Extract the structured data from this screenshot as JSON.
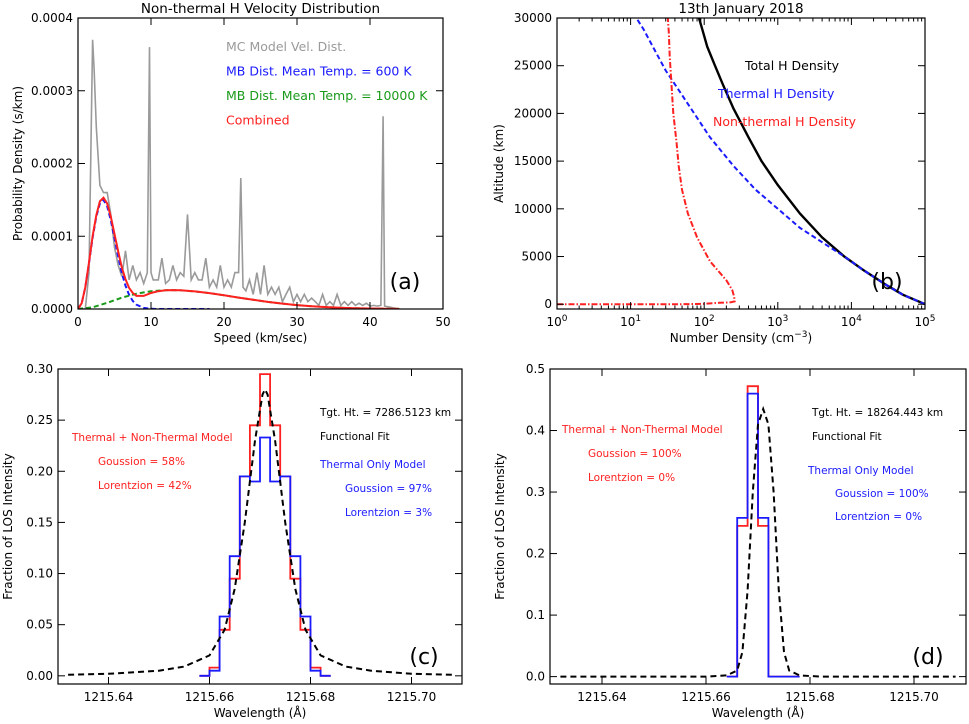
{
  "chart_data": [
    {
      "id": "a",
      "type": "line",
      "title": "Non-thermal H Velocity Distribution",
      "xlabel": "Speed (km/sec)",
      "ylabel": "Probability Density (s/km)",
      "xlim": [
        0,
        50
      ],
      "ylim": [
        0,
        0.0004
      ],
      "xticks": [
        0,
        10,
        20,
        30,
        40,
        50
      ],
      "xtick_labels": [
        "0",
        "10",
        "20",
        "30",
        "40",
        "50"
      ],
      "yticks": [
        0,
        0.0001,
        0.0002,
        0.0003,
        0.0004
      ],
      "ytick_labels": [
        "0.0000",
        "0.0001",
        "0.0002",
        "0.0003",
        "0.0004"
      ],
      "panel_label": "(a)",
      "legend": [
        {
          "text": "MC Model Vel. Dist.",
          "color": "#9a9a9a"
        },
        {
          "text": "MB Dist. Mean Temp. = 600 K",
          "color": "#1a1aff"
        },
        {
          "text": "MB Dist. Mean Temp. = 10000 K",
          "color": "#1a9a1a"
        },
        {
          "text": "Combined",
          "color": "#ff2020"
        }
      ],
      "series": [
        {
          "name": "MC Model Vel. Dist.",
          "color": "#9a9a9a",
          "x": [
            0,
            1,
            1.5,
            2,
            2.2,
            2.5,
            3,
            3.5,
            4,
            4.5,
            5,
            5.5,
            6,
            6.5,
            7,
            7.5,
            8,
            8.5,
            9,
            9.5,
            9.8,
            10,
            10.3,
            11,
            11.5,
            12,
            12.5,
            13,
            13.5,
            14,
            14.5,
            15,
            15.5,
            16,
            16.5,
            17,
            17.5,
            18,
            18.5,
            19,
            19.5,
            20,
            20.5,
            21,
            21.5,
            22,
            22.3,
            22.6,
            23,
            23.5,
            24,
            24.5,
            25,
            25.5,
            26,
            26.5,
            27,
            27.5,
            28,
            28.5,
            29,
            29.5,
            30,
            30.5,
            31,
            31.5,
            32,
            32.5,
            33,
            33.5,
            34,
            34.5,
            35,
            35.5,
            36,
            36.5,
            37,
            37.5,
            38,
            38.5,
            39,
            39.5,
            40,
            40.5,
            41,
            41.5,
            41.8,
            42,
            42.5,
            43,
            44
          ],
          "y": [
            0,
            0,
            5e-05,
            0.00037,
            0.00033,
            0.00025,
            0.00017,
            0.00016,
            0.00016,
            0.00013,
            8.5e-05,
            6e-05,
            4.5e-05,
            8e-05,
            4e-05,
            6e-05,
            4e-05,
            5e-05,
            3.5e-05,
            5e-05,
            0.00036,
            5e-05,
            4e-05,
            4e-05,
            7e-05,
            3.5e-05,
            4e-05,
            6e-05,
            4e-05,
            5e-05,
            4.5e-05,
            0.00013,
            4e-05,
            5e-05,
            4e-05,
            4e-05,
            7e-05,
            3e-05,
            4e-05,
            3e-05,
            6e-05,
            3e-05,
            4e-05,
            3e-05,
            5e-05,
            5e-05,
            0.00018,
            3e-05,
            2.5e-05,
            4e-05,
            2e-05,
            5e-05,
            2e-05,
            6e-05,
            2e-05,
            3e-05,
            2e-05,
            3e-05,
            1e-05,
            2e-05,
            3e-05,
            1e-05,
            2e-05,
            1e-05,
            2e-05,
            1e-05,
            1.5e-05,
            1e-05,
            5e-06,
            2e-05,
            5e-06,
            1e-05,
            5e-06,
            2e-05,
            5e-06,
            1e-05,
            5e-06,
            1e-05,
            5e-06,
            8e-06,
            5e-06,
            8e-06,
            4e-06,
            5e-06,
            4e-06,
            5e-06,
            0.000265,
            4e-06,
            3e-06,
            2e-06,
            0
          ]
        },
        {
          "name": "MB Dist. Mean Temp. = 600 K",
          "color": "#1a1aff",
          "dash": "5,3",
          "x": [
            0,
            0.5,
            1,
            1.5,
            2,
            2.5,
            3,
            3.5,
            4,
            4.5,
            5,
            5.5,
            6,
            6.5,
            7,
            7.5,
            8,
            9,
            10,
            11,
            12,
            13,
            14,
            15,
            16,
            17,
            18
          ],
          "y": [
            0,
            8e-06,
            3e-05,
            6.3e-05,
            9.8e-05,
            0.000127,
            0.000145,
            0.00015,
            0.000141,
            0.000122,
            9.75e-05,
            7.2e-05,
            4.95e-05,
            3.2e-05,
            1.94e-05,
            1.1e-05,
            5.9e-06,
            1.5e-06,
            3e-07,
            0,
            0,
            0,
            0,
            0,
            0,
            0,
            0
          ]
        },
        {
          "name": "MB Dist. Mean Temp. = 10000 K",
          "color": "#1a9a1a",
          "dash": "5,3",
          "x": [
            0,
            2,
            4,
            6,
            8,
            10,
            12,
            13,
            14,
            16,
            18,
            20,
            22,
            24,
            26,
            28,
            30,
            32,
            34,
            36,
            38,
            40,
            42,
            44
          ],
          "y": [
            0,
            2.4e-06,
            8.5e-06,
            1.55e-05,
            2.1e-05,
            2.45e-05,
            2.58e-05,
            2.6e-05,
            2.57e-05,
            2.42e-05,
            2.18e-05,
            1.88e-05,
            1.57e-05,
            1.26e-05,
            9.8e-06,
            7.4e-06,
            5.4e-06,
            3.8e-06,
            2.6e-06,
            1.7e-06,
            1.1e-06,
            7e-07,
            4e-07,
            2e-07
          ]
        },
        {
          "name": "Combined",
          "color": "#ff2020",
          "x": [
            0,
            0.5,
            1,
            1.5,
            2,
            2.5,
            3,
            3.5,
            4,
            4.5,
            5,
            5.5,
            6,
            6.5,
            7,
            7.5,
            8,
            9,
            10,
            11,
            12,
            13,
            14,
            16,
            18,
            20,
            22,
            24,
            26,
            28,
            30,
            32,
            34,
            36,
            38,
            40,
            42,
            44
          ],
          "y": [
            0,
            8e-06,
            3e-05,
            6.4e-05,
            0.0001,
            0.000129,
            0.000148,
            0.000153,
            0.000145,
            0.000127,
            0.000103,
            7.9e-05,
            5.7e-05,
            4.1e-05,
            2.9e-05,
            2.2e-05,
            1.8e-05,
            1.8e-05,
            2.2e-05,
            2.45e-05,
            2.58e-05,
            2.6e-05,
            2.57e-05,
            2.42e-05,
            2.18e-05,
            1.88e-05,
            1.57e-05,
            1.26e-05,
            9.8e-06,
            7.4e-06,
            5.4e-06,
            3.8e-06,
            2.6e-06,
            1.7e-06,
            1.1e-06,
            7e-07,
            4e-07,
            2e-07
          ]
        }
      ]
    },
    {
      "id": "b",
      "type": "line",
      "title": "13th January 2018",
      "xlabel": "Number Density (cm",
      "xlabel_sup": "−3",
      "xlabel_end": ")",
      "ylabel": "Altitude (km)",
      "xscale": "log",
      "xlim": [
        1,
        100000
      ],
      "ylim": [
        -500,
        30000
      ],
      "xticks": [
        1,
        10,
        100,
        1000,
        10000,
        100000
      ],
      "xtick_base": "10",
      "xtick_exps": [
        "0",
        "1",
        "2",
        "3",
        "4",
        "5"
      ],
      "yticks": [
        0,
        5000,
        10000,
        15000,
        20000,
        25000,
        30000
      ],
      "ytick_labels": [
        "0",
        "5000",
        "10000",
        "15000",
        "20000",
        "25000",
        "30000"
      ],
      "panel_label": "(b)",
      "legend": [
        {
          "text": "Total H Density",
          "color": "#000000"
        },
        {
          "text": "Thermal H Density",
          "color": "#1a1aff"
        },
        {
          "text": "Non-thermal H Density",
          "color": "#ff2020"
        }
      ],
      "series": [
        {
          "name": "Total H Density",
          "color": "#000000",
          "x": [
            100000,
            50000,
            30000,
            15000,
            8000,
            4000,
            2000,
            1000,
            600,
            400,
            250,
            180,
            140,
            110,
            95,
            85
          ],
          "y": [
            0,
            1000,
            2000,
            3500,
            5000,
            7000,
            9500,
            12500,
            15000,
            17500,
            20500,
            23000,
            25000,
            27000,
            28700,
            30000
          ]
        },
        {
          "name": "Thermal H Density",
          "color": "#1a1aff",
          "dash": "5,3",
          "x": [
            100000,
            50000,
            30000,
            15000,
            8000,
            4000,
            2000,
            1000,
            500,
            250,
            120,
            60,
            30,
            20,
            15,
            12
          ],
          "y": [
            0,
            1000,
            2000,
            3500,
            5000,
            6500,
            8000,
            10000,
            12000,
            14500,
            17500,
            21000,
            24500,
            27000,
            28800,
            30000
          ]
        },
        {
          "name": "Non-thermal H Density",
          "color": "#ff2020",
          "dash": "6,2,1.5,2",
          "x": [
            1,
            50,
            100,
            160,
            230,
            260,
            255,
            240,
            200,
            120,
            80,
            60,
            50,
            45,
            42,
            38,
            36,
            34,
            33,
            32
          ],
          "y": [
            0,
            0,
            50,
            150,
            200,
            300,
            800,
            1500,
            2500,
            4500,
            7000,
            9500,
            12000,
            14500,
            17000,
            20000,
            23000,
            26000,
            28500,
            30000
          ]
        }
      ]
    },
    {
      "id": "c",
      "type": "line",
      "xlabel": "Wavelength (Å)",
      "ylabel": "Fraction of LOS Intensity",
      "xlim": [
        1215.63,
        1215.71
      ],
      "ylim": [
        -0.008,
        0.3
      ],
      "xticks": [
        1215.64,
        1215.66,
        1215.68,
        1215.7
      ],
      "xtick_labels": [
        "1215.64",
        "1215.66",
        "1215.68",
        "1215.70"
      ],
      "yticks": [
        0,
        0.05,
        0.1,
        0.15,
        0.2,
        0.25,
        0.3
      ],
      "ytick_labels": [
        "0.00",
        "0.05",
        "0.10",
        "0.15",
        "0.20",
        "0.25",
        "0.30"
      ],
      "panel_label": "(c)",
      "bin_centers": [
        1215.659,
        1215.661,
        1215.663,
        1215.665,
        1215.667,
        1215.669,
        1215.671,
        1215.673,
        1215.675,
        1215.677,
        1215.679,
        1215.681,
        1215.683
      ],
      "annotations": {
        "tgt_ht": "Tgt. Ht. = 7286.5123 km",
        "fit": "Functional Fit",
        "model1": "Thermal + Non-Thermal Model",
        "gauss1": "Goussion = 58%",
        "lor1": "Lorentzion = 42%",
        "model2": "Thermal Only Model",
        "gauss2": "Goussion = 97%",
        "lor2": "Lorentzion = 3%"
      },
      "series": [
        {
          "name": "Thermal + Non-Thermal Model",
          "color": "#ff2020",
          "kind": "step",
          "values": [
            0,
            0.008,
            0.045,
            0.095,
            0.195,
            0.245,
            0.295,
            0.245,
            0.195,
            0.095,
            0.045,
            0.008,
            0
          ]
        },
        {
          "name": "Thermal Only Model",
          "color": "#1a1aff",
          "kind": "step",
          "values": [
            0,
            0.005,
            0.058,
            0.117,
            0.195,
            0.19,
            0.233,
            0.19,
            0.195,
            0.117,
            0.058,
            0.005,
            0
          ]
        },
        {
          "name": "Functional Fit",
          "color": "#000000",
          "dash": "6,4",
          "x": [
            1215.632,
            1215.64,
            1215.65,
            1215.655,
            1215.66,
            1215.663,
            1215.665,
            1215.667,
            1215.669,
            1215.6705,
            1215.671,
            1215.6715,
            1215.673,
            1215.675,
            1215.677,
            1215.679,
            1215.682,
            1215.687,
            1215.692,
            1215.7,
            1215.708
          ],
          "y": [
            0.001,
            0.002,
            0.005,
            0.009,
            0.02,
            0.045,
            0.085,
            0.15,
            0.23,
            0.275,
            0.28,
            0.275,
            0.23,
            0.15,
            0.085,
            0.045,
            0.02,
            0.009,
            0.005,
            0.002,
            0.001
          ]
        }
      ]
    },
    {
      "id": "d",
      "type": "line",
      "xlabel": "Wavelength (Å)",
      "ylabel": "Fraction of LOS Intensity",
      "xlim": [
        1215.63,
        1215.71
      ],
      "ylim": [
        -0.012,
        0.5
      ],
      "xticks": [
        1215.64,
        1215.66,
        1215.68,
        1215.7
      ],
      "xtick_labels": [
        "1215.64",
        "1215.66",
        "1215.68",
        "1215.70"
      ],
      "yticks": [
        0,
        0.1,
        0.2,
        0.3,
        0.4,
        0.5
      ],
      "ytick_labels": [
        "0.0",
        "0.1",
        "0.2",
        "0.3",
        "0.4",
        "0.5"
      ],
      "panel_label": "(d)",
      "bin_centers": [
        1215.665,
        1215.667,
        1215.669,
        1215.671,
        1215.673,
        1215.675,
        1215.677
      ],
      "annotations": {
        "tgt_ht": "Tgt. Ht. = 18264.443 km",
        "fit": "Functional Fit",
        "model1": "Thermal + Non-Thermal Model",
        "gauss1": "Goussion = 100%",
        "lor1": "Lorentzion = 0%",
        "model2": "Thermal Only Model",
        "gauss2": "Goussion = 100%",
        "lor2": "Lorentzion = 0%"
      },
      "series": [
        {
          "name": "Thermal + Non-Thermal Model",
          "color": "#ff2020",
          "kind": "step",
          "values": [
            0,
            0.245,
            0.472,
            0.245,
            0,
            0,
            0
          ]
        },
        {
          "name": "Thermal Only Model",
          "color": "#1a1aff",
          "kind": "step",
          "values": [
            0,
            0.258,
            0.46,
            0.258,
            0,
            0,
            0
          ]
        },
        {
          "name": "Functional Fit",
          "color": "#000000",
          "dash": "6,4",
          "x": [
            1215.632,
            1215.66,
            1215.664,
            1215.666,
            1215.667,
            1215.668,
            1215.669,
            1215.67,
            1215.671,
            1215.672,
            1215.673,
            1215.674,
            1215.675,
            1215.676,
            1215.678,
            1215.682,
            1215.708
          ],
          "y": [
            0,
            0,
            0.002,
            0.01,
            0.04,
            0.14,
            0.3,
            0.41,
            0.435,
            0.41,
            0.3,
            0.14,
            0.04,
            0.01,
            0.002,
            0,
            0
          ]
        }
      ]
    }
  ]
}
